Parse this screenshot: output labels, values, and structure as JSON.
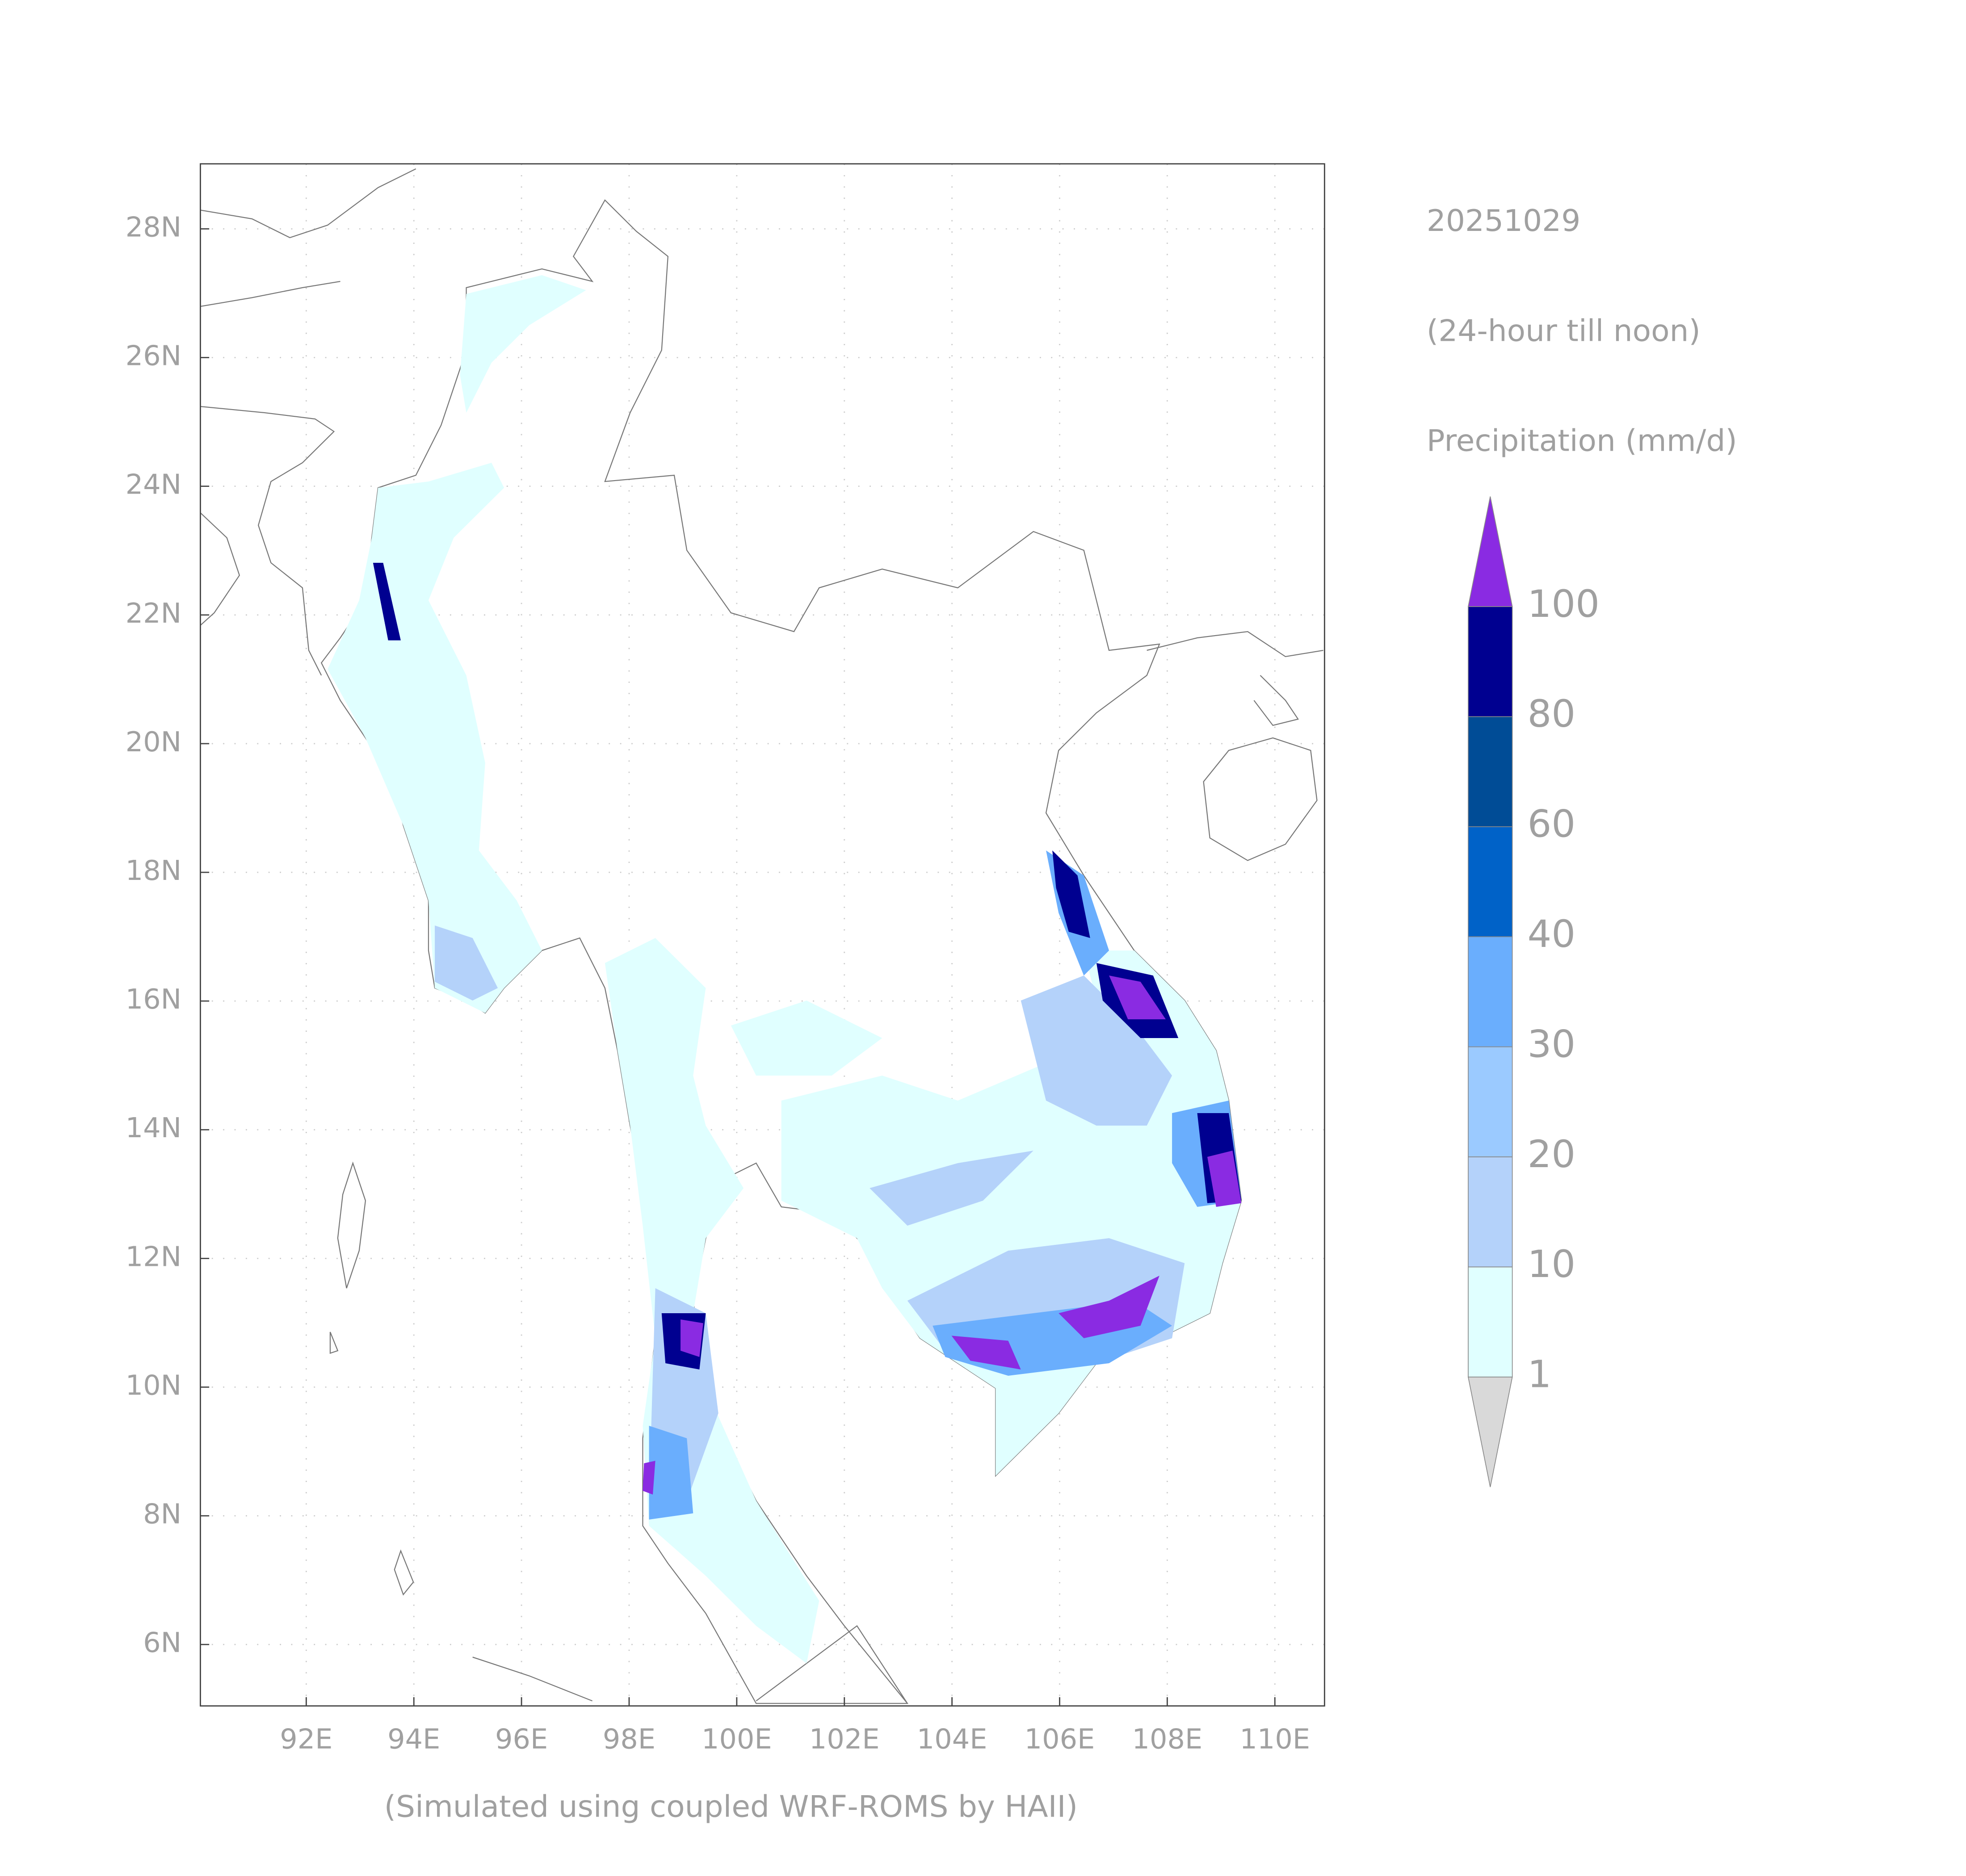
{
  "header": {
    "date": "20251029",
    "period": "(24-hour till noon)",
    "variable": "Precipitation (mm/d)"
  },
  "footer": "(Simulated using coupled WRF-ROMS by HAII)",
  "map": {
    "lon_labels": [
      "92E",
      "94E",
      "96E",
      "98E",
      "100E",
      "102E",
      "104E",
      "106E",
      "108E",
      "110E"
    ],
    "lat_labels": [
      "28N",
      "26N",
      "24N",
      "22N",
      "20N",
      "18N",
      "16N",
      "14N",
      "12N",
      "10N",
      "8N",
      "6N"
    ]
  },
  "colorbar": {
    "levels": [
      1,
      10,
      20,
      30,
      40,
      60,
      80,
      100
    ],
    "colors": [
      "#d9d9d9",
      "#e0ffff",
      "#b4d2fa",
      "#9bcaff",
      "#6aaefd",
      "#0062c8",
      "#004c96",
      "#000090",
      "#8a2be2"
    ]
  }
}
